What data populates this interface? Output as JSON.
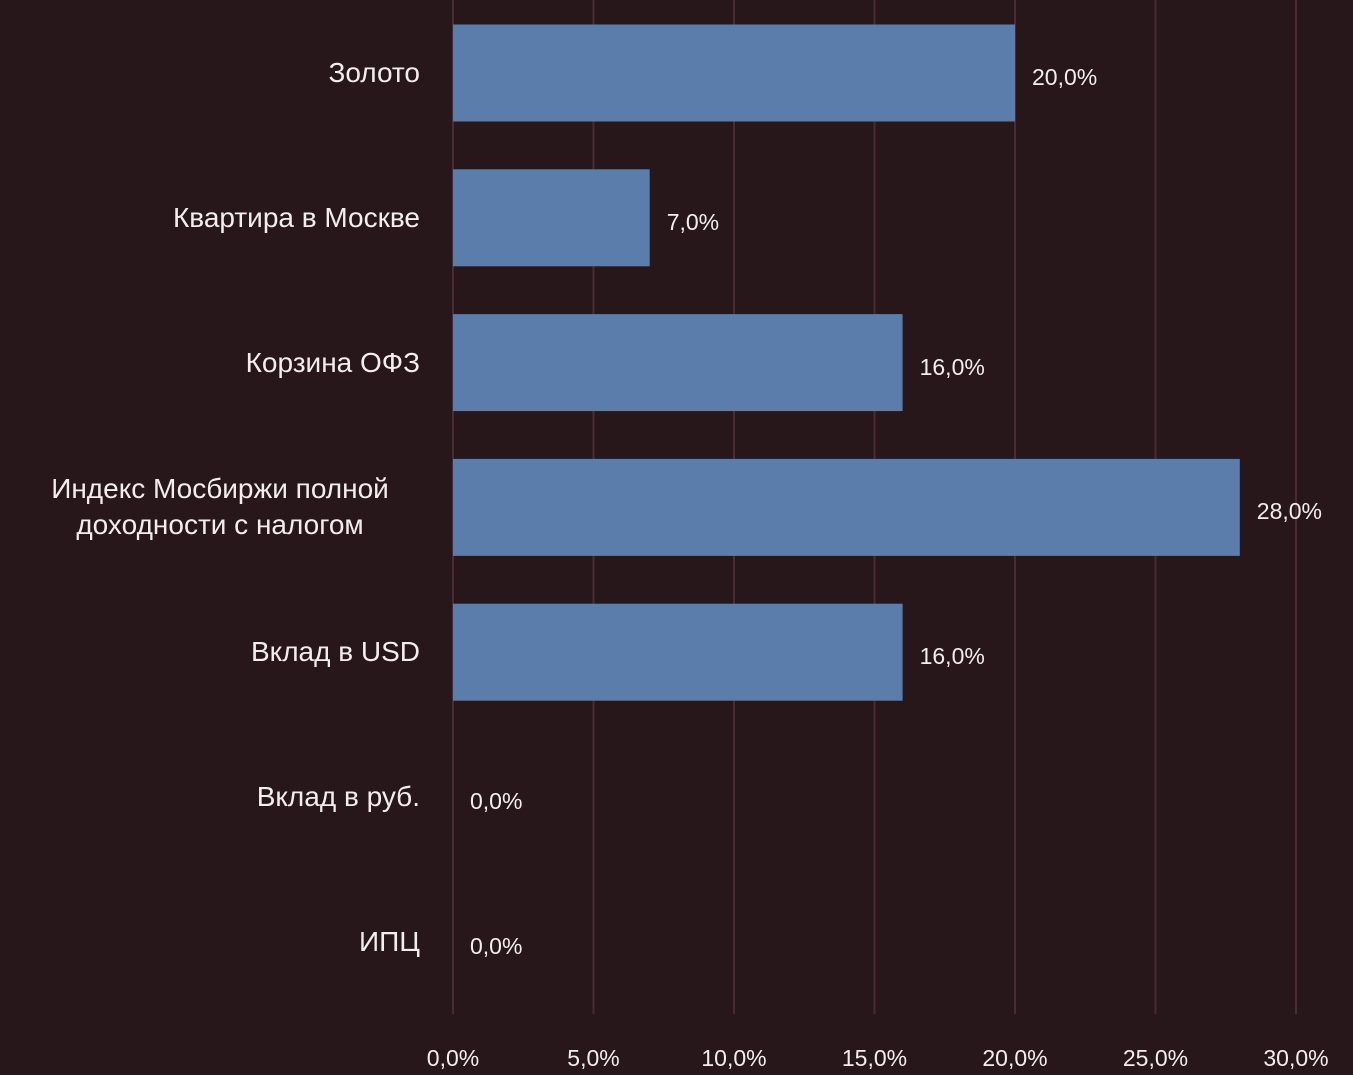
{
  "chart_data": {
    "type": "barh",
    "categories": [
      "Золото",
      "Квартира в Москве",
      "Корзина ОФЗ",
      "Индекс Мосбиржи полной доходности с налогом",
      "Вклад в USD",
      "Вклад в руб.",
      "ИПЦ"
    ],
    "values": [
      20,
      7,
      16,
      28,
      16,
      0,
      0
    ],
    "value_labels": [
      "20,0%",
      "7,0%",
      "16,0%",
      "28,0%",
      "16,0%",
      "0,0%",
      "0,0%"
    ],
    "color": "#5b7dab",
    "xlim": [
      0,
      30
    ],
    "xticks": [
      {
        "value": 0,
        "label": "0,0%"
      },
      {
        "value": 5,
        "label": "5,0%"
      },
      {
        "value": 10,
        "label": "10,0%"
      },
      {
        "value": 15,
        "label": "15,0%"
      },
      {
        "value": 20,
        "label": "20,0%"
      },
      {
        "value": 25,
        "label": "25,0%"
      },
      {
        "value": 30,
        "label": "30,0%"
      }
    ],
    "grid": true
  }
}
